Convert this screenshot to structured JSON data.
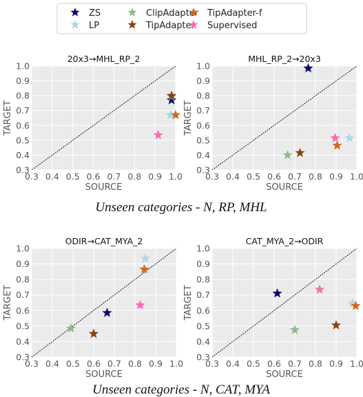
{
  "legend": {
    "entries": [
      {
        "name": "ZS",
        "color": "#0b0b6e"
      },
      {
        "name": "LP",
        "color": "#add8e6"
      },
      {
        "name": "ClipAdapter",
        "color": "#8fbc8f"
      },
      {
        "name": "TipAdapter",
        "color": "#8b4513"
      },
      {
        "name": "TipAdapter-f",
        "color": "#d2691e"
      },
      {
        "name": "Supervised",
        "color": "#ff69b4"
      }
    ]
  },
  "captions": [
    "Unseen categories - N, RP, MHL",
    "Unseen categories - N, CAT, MYA"
  ],
  "chart_data": [
    {
      "type": "scatter",
      "title": "20x3→MHL_RP_2",
      "xlabel": "SOURCE",
      "ylabel": "TARGET",
      "xlim": [
        0.3,
        1.0
      ],
      "ylim": [
        0.3,
        1.0
      ],
      "xticks": [
        "0.3",
        "0.4",
        "0.5",
        "0.6",
        "0.7",
        "0.8",
        "0.9",
        "1.0"
      ],
      "yticks": [
        "0.3",
        "0.4",
        "0.5",
        "0.6",
        "0.7",
        "0.8",
        "0.9",
        "1.0"
      ],
      "grid": true,
      "diagonal": true,
      "points": [
        {
          "series": "ZS",
          "x": 0.98,
          "y": 0.77
        },
        {
          "series": "LP",
          "x": 0.975,
          "y": 0.67
        },
        {
          "series": "ClipAdapter",
          "x": 0.98,
          "y": 0.795
        },
        {
          "series": "TipAdapter",
          "x": 0.98,
          "y": 0.8
        },
        {
          "series": "TipAdapter-f",
          "x": 1.0,
          "y": 0.67
        },
        {
          "series": "Supervised",
          "x": 0.915,
          "y": 0.535
        }
      ]
    },
    {
      "type": "scatter",
      "title": "MHL_RP_2→20x3",
      "xlabel": "SOURCE",
      "ylabel": "TARGET",
      "xlim": [
        0.3,
        1.0
      ],
      "ylim": [
        0.3,
        1.0
      ],
      "xticks": [
        "0.3",
        "0.4",
        "0.5",
        "0.6",
        "0.7",
        "0.8",
        "0.9",
        "1.0"
      ],
      "yticks": [
        "0.3",
        "0.4",
        "0.5",
        "0.6",
        "0.7",
        "0.8",
        "0.9",
        "1.0"
      ],
      "grid": true,
      "diagonal": true,
      "points": [
        {
          "series": "ZS",
          "x": 0.765,
          "y": 0.985
        },
        {
          "series": "LP",
          "x": 0.965,
          "y": 0.515
        },
        {
          "series": "ClipAdapter",
          "x": 0.665,
          "y": 0.4
        },
        {
          "series": "TipAdapter",
          "x": 0.725,
          "y": 0.415
        },
        {
          "series": "TipAdapter-f",
          "x": 0.905,
          "y": 0.465
        },
        {
          "series": "Supervised",
          "x": 0.895,
          "y": 0.515
        }
      ]
    },
    {
      "type": "scatter",
      "title": "ODIR→CAT_MYA_2",
      "xlabel": "SOURCE",
      "ylabel": "TARGET",
      "xlim": [
        0.3,
        1.0
      ],
      "ylim": [
        0.3,
        1.0
      ],
      "xticks": [
        "0.3",
        "0.4",
        "0.5",
        "0.6",
        "0.7",
        "0.8",
        "0.9",
        "1.0"
      ],
      "yticks": [
        "0.3",
        "0.4",
        "0.5",
        "0.6",
        "0.7",
        "0.8",
        "0.9",
        "1.0"
      ],
      "grid": true,
      "diagonal": true,
      "points": [
        {
          "series": "ZS",
          "x": 0.665,
          "y": 0.585
        },
        {
          "series": "LP",
          "x": 0.85,
          "y": 0.935
        },
        {
          "series": "ClipAdapter",
          "x": 0.49,
          "y": 0.485
        },
        {
          "series": "TipAdapter",
          "x": 0.6,
          "y": 0.45
        },
        {
          "series": "TipAdapter-f",
          "x": 0.845,
          "y": 0.865
        },
        {
          "series": "Supervised",
          "x": 0.825,
          "y": 0.635
        }
      ]
    },
    {
      "type": "scatter",
      "title": "CAT_MYA_2→ODIR",
      "xlabel": "SOURCE",
      "ylabel": "TARGET",
      "xlim": [
        0.3,
        1.0
      ],
      "ylim": [
        0.3,
        1.0
      ],
      "xticks": [
        "0.3",
        "0.4",
        "0.5",
        "0.6",
        "0.7",
        "0.8",
        "0.9",
        "1.0"
      ],
      "yticks": [
        "0.3",
        "0.4",
        "0.5",
        "0.6",
        "0.7",
        "0.8",
        "0.9",
        "1.0"
      ],
      "grid": true,
      "diagonal": true,
      "points": [
        {
          "series": "ZS",
          "x": 0.615,
          "y": 0.71
        },
        {
          "series": "LP",
          "x": 0.98,
          "y": 0.645
        },
        {
          "series": "ClipAdapter",
          "x": 0.7,
          "y": 0.475
        },
        {
          "series": "TipAdapter",
          "x": 0.9,
          "y": 0.505
        },
        {
          "series": "TipAdapter-f",
          "x": 0.995,
          "y": 0.63
        },
        {
          "series": "Supervised",
          "x": 0.82,
          "y": 0.735
        }
      ]
    }
  ]
}
